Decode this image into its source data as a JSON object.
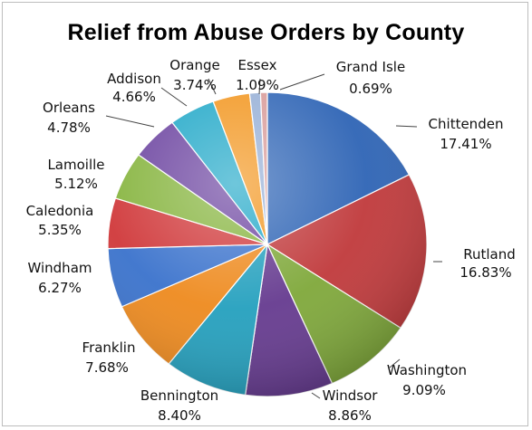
{
  "chart_data": {
    "type": "pie",
    "title": "Relief from Abuse Orders by County",
    "slices": [
      {
        "name": "Chittenden",
        "value": 17.41,
        "label": "17.41%",
        "color": "#2E64B5"
      },
      {
        "name": "Rutland",
        "value": 16.83,
        "label": "16.83%",
        "color": "#C0393B"
      },
      {
        "name": "Washington",
        "value": 9.09,
        "label": "9.09%",
        "color": "#7FA83A"
      },
      {
        "name": "Windsor",
        "value": 8.86,
        "label": "8.86%",
        "color": "#653A8F"
      },
      {
        "name": "Bennington",
        "value": 8.4,
        "label": "8.40%",
        "color": "#24A0BE"
      },
      {
        "name": "Franklin",
        "value": 7.68,
        "label": "7.68%",
        "color": "#EE8A1E"
      },
      {
        "name": "Windham",
        "value": 6.27,
        "label": "6.27%",
        "color": "#3A72CC"
      },
      {
        "name": "Caledonia",
        "value": 5.35,
        "label": "5.35%",
        "color": "#D0383A"
      },
      {
        "name": "Lamoille",
        "value": 5.12,
        "label": "5.12%",
        "color": "#86B43E"
      },
      {
        "name": "Orleans",
        "value": 4.78,
        "label": "4.78%",
        "color": "#6C44A0"
      },
      {
        "name": "Addison",
        "value": 4.66,
        "label": "4.66%",
        "color": "#21A8C8"
      },
      {
        "name": "Orange",
        "value": 3.74,
        "label": "3.74%",
        "color": "#F2961F"
      },
      {
        "name": "Essex",
        "value": 1.09,
        "label": "1.09%",
        "color": "#96AFD6"
      },
      {
        "name": "Grand Isle",
        "value": 0.69,
        "label": "0.69%",
        "color": "#D89A98"
      }
    ],
    "legend": "none"
  }
}
